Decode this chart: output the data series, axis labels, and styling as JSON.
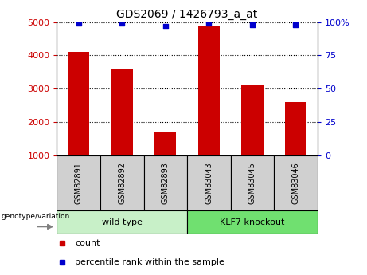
{
  "title": "GDS2069 / 1426793_a_at",
  "samples": [
    "GSM82891",
    "GSM82892",
    "GSM82893",
    "GSM83043",
    "GSM83045",
    "GSM83046"
  ],
  "counts": [
    4100,
    3580,
    1720,
    4870,
    3100,
    2600
  ],
  "percentile_ranks": [
    99,
    99,
    97,
    99,
    98,
    98
  ],
  "bar_color": "#CC0000",
  "dot_color": "#0000CC",
  "ylim_left": [
    1000,
    5000
  ],
  "ylim_right": [
    0,
    100
  ],
  "yticks_left": [
    1000,
    2000,
    3000,
    4000,
    5000
  ],
  "yticks_right": [
    0,
    25,
    50,
    75,
    100
  ],
  "left_tick_labels": [
    "1000",
    "2000",
    "3000",
    "4000",
    "5000"
  ],
  "right_tick_labels": [
    "0",
    "25",
    "50",
    "75",
    "100%"
  ],
  "legend_count_label": "count",
  "legend_pct_label": "percentile rank within the sample",
  "genotype_label": "genotype/variation",
  "group_labels": [
    "wild type",
    "KLF7 knockout"
  ],
  "wt_color": "#C8F0C8",
  "ko_color": "#70E070",
  "sample_box_color": "#D0D0D0",
  "bar_width": 0.5
}
